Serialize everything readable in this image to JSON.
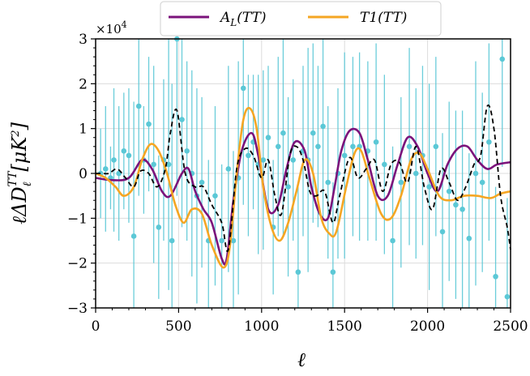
{
  "chart_data": {
    "type": "line",
    "xlabel": "ℓ",
    "ylabel": "ℓΔD",
    "ylabel_sub": "ℓ",
    "ylabel_sup": "TT",
    "ylabel_unit": "[μK",
    "ylabel_unit_sup": "2",
    "ylabel_unit_close": "]",
    "multiplier": "×10",
    "multiplier_exp": "4",
    "xlim": [
      0,
      2500
    ],
    "ylim": [
      -3,
      3
    ],
    "grid": true,
    "legend_placement": "top-center",
    "x_ticks": [
      0,
      500,
      1000,
      1500,
      2000,
      2500
    ],
    "y_ticks": [
      -3,
      -2,
      -1,
      0,
      1,
      2,
      3
    ],
    "x_tick_labels": [
      "0",
      "500",
      "1000",
      "1500",
      "2000",
      "2500"
    ],
    "y_tick_labels": [
      "−3",
      "−2",
      "−1",
      "0",
      "1",
      "2",
      "3"
    ],
    "series": [
      {
        "name": "A_L(TT)",
        "name_main": "A",
        "name_sub": "L",
        "name_rest": "(TT)",
        "color": "#7b137b",
        "style": "solid",
        "x": [
          0,
          100,
          200,
          280,
          340,
          400,
          450,
          520,
          560,
          600,
          650,
          700,
          760,
          790,
          830,
          880,
          940,
          980,
          1040,
          1100,
          1150,
          1200,
          1260,
          1300,
          1350,
          1400,
          1440,
          1480,
          1530,
          1590,
          1640,
          1700,
          1760,
          1820,
          1880,
          1940,
          2000,
          2060,
          2120,
          2180,
          2240,
          2300,
          2360,
          2420,
          2500
        ],
        "y": [
          -0.1,
          -0.15,
          -0.1,
          0.3,
          0.1,
          -0.4,
          -0.5,
          0.0,
          0.1,
          -0.4,
          -0.8,
          -1.1,
          -1.9,
          -1.9,
          -0.6,
          0.5,
          0.9,
          0.4,
          -0.8,
          -0.7,
          0.1,
          0.7,
          0.5,
          -0.3,
          -0.9,
          -1.0,
          -0.3,
          0.5,
          0.95,
          0.9,
          0.3,
          -0.5,
          -0.5,
          0.2,
          0.8,
          0.6,
          0.0,
          -0.4,
          0.2,
          0.55,
          0.6,
          0.3,
          0.1,
          0.2,
          0.25
        ]
      },
      {
        "name": "T1(TT)",
        "name_main": "T1",
        "name_sub": "",
        "name_rest": "(TT)",
        "color": "#f5a623",
        "style": "solid",
        "x": [
          0,
          60,
          120,
          170,
          230,
          280,
          330,
          380,
          430,
          480,
          530,
          580,
          640,
          700,
          770,
          810,
          850,
          890,
          930,
          970,
          1010,
          1060,
          1110,
          1160,
          1210,
          1260,
          1310,
          1360,
          1410,
          1450,
          1510,
          1560,
          1600,
          1650,
          1720,
          1780,
          1840,
          1900,
          1950,
          2000,
          2070,
          2140,
          2220,
          2300,
          2380,
          2440,
          2500
        ],
        "y": [
          0.0,
          -0.1,
          -0.3,
          -0.5,
          -0.3,
          0.3,
          0.65,
          0.5,
          0.0,
          -0.7,
          -1.1,
          -0.8,
          -0.9,
          -1.6,
          -2.1,
          -1.6,
          0.0,
          1.2,
          1.45,
          1.0,
          -0.3,
          -1.2,
          -1.5,
          -1.1,
          -0.4,
          0.3,
          0.0,
          -1.0,
          -1.35,
          -1.3,
          -0.3,
          0.45,
          0.5,
          -0.1,
          -0.9,
          -1.0,
          -0.5,
          0.3,
          0.45,
          0.1,
          -0.5,
          -0.6,
          -0.5,
          -0.5,
          -0.55,
          -0.45,
          -0.4
        ]
      },
      {
        "name": "",
        "color": "#000000",
        "style": "dashed",
        "x": [
          0,
          40,
          80,
          130,
          180,
          230,
          270,
          320,
          370,
          420,
          450,
          490,
          540,
          600,
          650,
          700,
          760,
          800,
          850,
          900,
          950,
          1000,
          1040,
          1080,
          1120,
          1170,
          1210,
          1250,
          1290,
          1330,
          1380,
          1430,
          1470,
          1530,
          1580,
          1630,
          1680,
          1730,
          1780,
          1830,
          1880,
          1930,
          1980,
          2030,
          2080,
          2130,
          2180,
          2230,
          2280,
          2320,
          2360,
          2400,
          2440,
          2480,
          2500
        ],
        "y": [
          0.0,
          0.0,
          0.0,
          0.1,
          -0.1,
          -0.3,
          0.05,
          0.0,
          -0.3,
          0.1,
          0.9,
          1.4,
          0.0,
          -0.3,
          -0.3,
          -0.7,
          -1.1,
          -1.7,
          0.1,
          0.55,
          0.4,
          -0.1,
          0.3,
          -0.5,
          -0.9,
          0.4,
          0.6,
          0.3,
          -0.4,
          -0.5,
          -0.4,
          -1.1,
          -0.5,
          0.35,
          -0.1,
          0.1,
          0.3,
          -0.4,
          0.2,
          0.25,
          -0.2,
          0.6,
          -0.3,
          -0.8,
          0.1,
          -0.2,
          -0.6,
          -0.3,
          0.2,
          0.4,
          1.5,
          1.0,
          -0.5,
          -1.2,
          -1.7
        ]
      },
      {
        "name": "",
        "color": "#5bc8d6",
        "style": "points",
        "x": [
          30,
          60,
          90,
          110,
          140,
          170,
          200,
          230,
          260,
          290,
          320,
          350,
          380,
          410,
          440,
          460,
          490,
          520,
          550,
          580,
          610,
          640,
          680,
          720,
          760,
          800,
          830,
          860,
          890,
          920,
          950,
          980,
          1010,
          1040,
          1070,
          1100,
          1130,
          1160,
          1190,
          1220,
          1250,
          1280,
          1310,
          1340,
          1370,
          1400,
          1430,
          1460,
          1500,
          1550,
          1590,
          1640,
          1690,
          1740,
          1790,
          1840,
          1890,
          1930,
          1970,
          2010,
          2050,
          2090,
          2130,
          2170,
          2210,
          2250,
          2290,
          2330,
          2370,
          2410,
          2450,
          2480
        ],
        "y": [
          0.0,
          0.1,
          -0.1,
          0.3,
          0.0,
          0.5,
          0.4,
          -1.4,
          1.5,
          0.3,
          1.1,
          0.2,
          -1.2,
          0.3,
          0.2,
          -1.5,
          3.0,
          1.2,
          0.5,
          0.0,
          -0.5,
          -0.2,
          -1.5,
          -0.5,
          -1.5,
          0.1,
          -1.5,
          -0.1,
          1.9,
          0.4,
          0.7,
          0.2,
          0.3,
          0.8,
          -1.2,
          0.6,
          0.9,
          -0.3,
          0.3,
          -2.2,
          0.5,
          0.3,
          0.9,
          0.6,
          1.05,
          -0.2,
          -2.2,
          0.0,
          0.4,
          0.6,
          0.6,
          0.5,
          0.7,
          0.2,
          -1.5,
          -0.2,
          0.6,
          0.0,
          0.4,
          -0.3,
          0.6,
          -1.3,
          -0.4,
          -0.7,
          -0.8,
          -1.45,
          0.0,
          -0.2,
          0.7,
          -2.3,
          2.55,
          -2.75
        ],
        "err": [
          1.0,
          1.4,
          0.7,
          1.6,
          1.5,
          1.3,
          1.5,
          3.0,
          2.0,
          1.2,
          1.5,
          2.2,
          1.6,
          1.8,
          2.8,
          3.5,
          3.5,
          2.4,
          2.0,
          2.3,
          2.4,
          1.9,
          1.8,
          2.0,
          1.7,
          2.3,
          2.0,
          2.6,
          2.6,
          1.8,
          1.5,
          2.0,
          2.0,
          1.6,
          1.5,
          2.0,
          2.3,
          2.0,
          1.8,
          2.0,
          1.9,
          2.5,
          2.0,
          1.8,
          2.1,
          1.7,
          2.0,
          1.9,
          2.3,
          2.0,
          2.1,
          2.0,
          2.2,
          2.0,
          2.1,
          1.9,
          2.2,
          1.9,
          2.0,
          2.3,
          2.0,
          2.2,
          2.0,
          2.1,
          2.2,
          1.9,
          2.5,
          2.0,
          2.2,
          2.0,
          2.4,
          2.2
        ]
      }
    ]
  }
}
